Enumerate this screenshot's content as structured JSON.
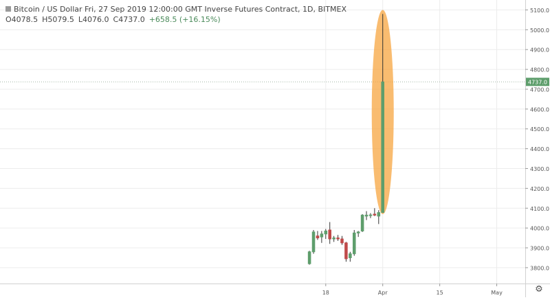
{
  "header": {
    "symbol_line": "Bitcoin / US Dollar Fri, 27 Sep 2019 12:00:00 GMT Inverse Futures Contract, 1D, BITMEX",
    "open": "O4078.5",
    "high": "H5079.5",
    "low": "L4076.0",
    "close": "C4737.0",
    "change": "+658.5 (+16.15%)"
  },
  "colors": {
    "up": "#5e9e6c",
    "down": "#c04a4a",
    "highlight": "#f7a640",
    "grid": "#ececec",
    "price_tag": "#5e9e6c"
  },
  "icons": {
    "settings": "gear-icon"
  },
  "chart_data": {
    "type": "candlestick",
    "ylim": [
      3720,
      5150
    ],
    "y_ticks": [
      3800,
      3900,
      4000,
      4100,
      4200,
      4300,
      4400,
      4500,
      4600,
      4700,
      4800,
      4900,
      5000,
      5100
    ],
    "y_tick_labels": [
      "3800.0",
      "3900.0",
      "4000.0",
      "4100.0",
      "4200.0",
      "4300.0",
      "4400.0",
      "4500.0",
      "4600.0",
      "4700.0",
      "4800.0",
      "4900.0",
      "5000.0",
      "5100.0"
    ],
    "x_ticks": [
      {
        "index": 4,
        "label": "18"
      },
      {
        "index": 18,
        "label": "Apr"
      },
      {
        "index": 32,
        "label": "15"
      },
      {
        "index": 46,
        "label": "May"
      }
    ],
    "x_range": [
      -76,
      53
    ],
    "last_price": 4737.0,
    "last_price_label": "4737.0",
    "highlight": {
      "type": "ellipse",
      "index": 18,
      "y_top": 5100,
      "y_bottom": 4070
    },
    "candles": [
      {
        "o": 3820,
        "h": 3885,
        "l": 3815,
        "c": 3880
      },
      {
        "o": 3880,
        "h": 3990,
        "l": 3870,
        "c": 3980
      },
      {
        "o": 3960,
        "h": 3985,
        "l": 3940,
        "c": 3950
      },
      {
        "o": 3955,
        "h": 3985,
        "l": 3925,
        "c": 3970
      },
      {
        "o": 3970,
        "h": 3995,
        "l": 3945,
        "c": 3985
      },
      {
        "o": 3990,
        "h": 4030,
        "l": 3920,
        "c": 3945
      },
      {
        "o": 3945,
        "h": 3960,
        "l": 3930,
        "c": 3950
      },
      {
        "o": 3950,
        "h": 3965,
        "l": 3935,
        "c": 3945
      },
      {
        "o": 3945,
        "h": 3960,
        "l": 3915,
        "c": 3925
      },
      {
        "o": 3925,
        "h": 3930,
        "l": 3830,
        "c": 3845
      },
      {
        "o": 3850,
        "h": 3880,
        "l": 3830,
        "c": 3870
      },
      {
        "o": 3870,
        "h": 3990,
        "l": 3860,
        "c": 3975
      },
      {
        "o": 3975,
        "h": 3985,
        "l": 3955,
        "c": 3980
      },
      {
        "o": 3985,
        "h": 4070,
        "l": 3980,
        "c": 4065
      },
      {
        "o": 4060,
        "h": 4085,
        "l": 4040,
        "c": 4065
      },
      {
        "o": 4063,
        "h": 4075,
        "l": 4050,
        "c": 4066
      },
      {
        "o": 4070,
        "h": 4100,
        "l": 4060,
        "c": 4065
      },
      {
        "o": 4060,
        "h": 4090,
        "l": 4020,
        "c": 4078
      },
      {
        "o": 4078.5,
        "h": 5079.5,
        "l": 4076.0,
        "c": 4737.0
      }
    ]
  }
}
